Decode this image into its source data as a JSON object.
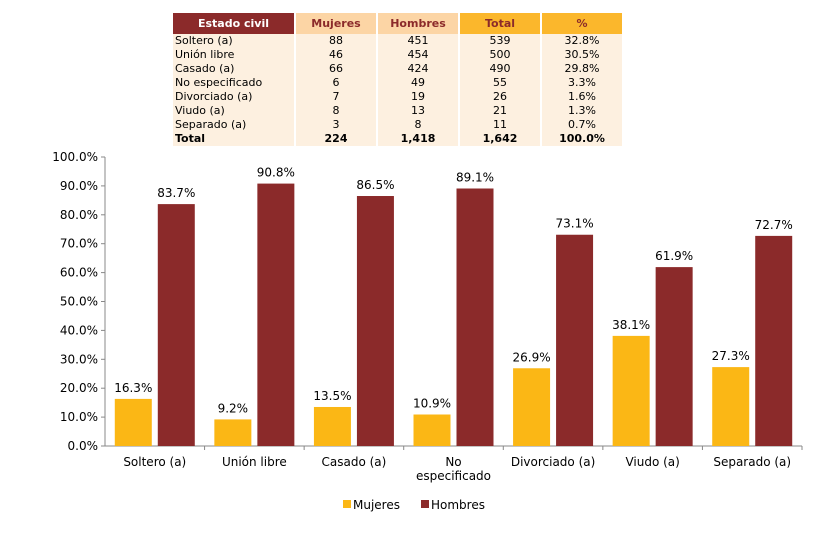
{
  "table": {
    "headers": [
      "Estado civil",
      "Mujeres",
      "Hombres",
      "Total",
      "%"
    ],
    "rows": [
      [
        "Soltero (a)",
        "88",
        "451",
        "539",
        "32.8%"
      ],
      [
        "Unión libre",
        "46",
        "454",
        "500",
        "30.5%"
      ],
      [
        "Casado (a)",
        "66",
        "424",
        "490",
        "29.8%"
      ],
      [
        "No especificado",
        "6",
        "49",
        "55",
        "3.3%"
      ],
      [
        "Divorciado (a)",
        "7",
        "19",
        "26",
        "1.6%"
      ],
      [
        "Viudo (a)",
        "8",
        "13",
        "21",
        "1.3%"
      ],
      [
        "Separado (a)",
        "3",
        "8",
        "11",
        "0.7%"
      ]
    ],
    "total": [
      "Total",
      "224",
      "1,418",
      "1,642",
      "100.0%"
    ]
  },
  "chart_data": {
    "type": "bar",
    "categories": [
      "Soltero (a)",
      "Unión libre",
      "Casado (a)",
      "No especificado",
      "Divorciado (a)",
      "Viudo (a)",
      "Separado (a)"
    ],
    "category_lines": [
      [
        "Soltero (a)"
      ],
      [
        "Unión libre"
      ],
      [
        "Casado (a)"
      ],
      [
        "No",
        "especificado"
      ],
      [
        "Divorciado (a)"
      ],
      [
        "Viudo (a)"
      ],
      [
        "Separado (a)"
      ]
    ],
    "series": [
      {
        "name": "Mujeres",
        "color": "#fbb715",
        "values": [
          16.3,
          9.2,
          13.5,
          10.9,
          26.9,
          38.1,
          27.3
        ],
        "labels": [
          "16.3%",
          "9.2%",
          "13.5%",
          "10.9%",
          "26.9%",
          "38.1%",
          "27.3%"
        ]
      },
      {
        "name": "Hombres",
        "color": "#8b2a2a",
        "values": [
          83.7,
          90.8,
          86.5,
          89.1,
          73.1,
          61.9,
          72.7
        ],
        "labels": [
          "83.7%",
          "90.8%",
          "86.5%",
          "89.1%",
          "73.1%",
          "61.9%",
          "72.7%"
        ]
      }
    ],
    "yticks": [
      "0.0%",
      "10.0%",
      "20.0%",
      "30.0%",
      "40.0%",
      "50.0%",
      "60.0%",
      "70.0%",
      "80.0%",
      "90.0%",
      "100.0%"
    ],
    "ylim": [
      0,
      100
    ],
    "legend": "bottom"
  }
}
